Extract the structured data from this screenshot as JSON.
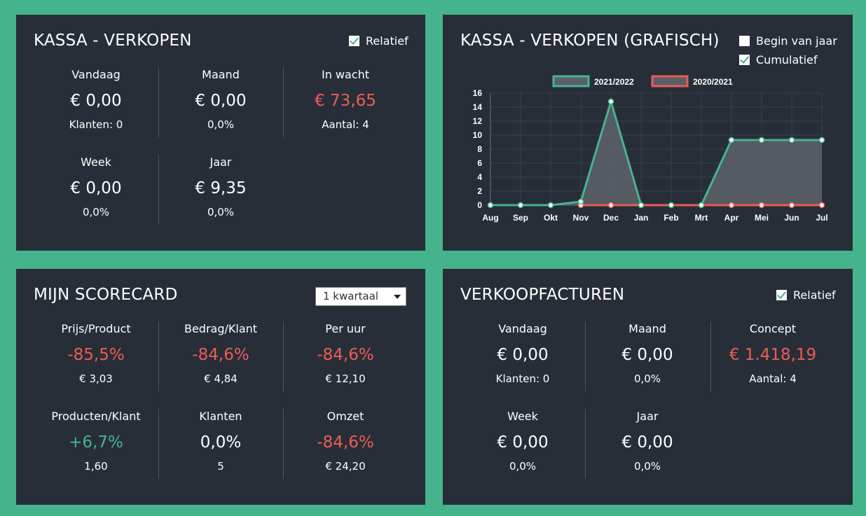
{
  "kassa": {
    "title": "KASSA - VERKOPEN",
    "relatief_label": "Relatief",
    "relatief_checked": true,
    "stats": [
      {
        "label": "Vandaag",
        "value": "€ 0,00",
        "sub": "Klanten: 0",
        "value_color": "white"
      },
      {
        "label": "Maand",
        "value": "€ 0,00",
        "sub": "0,0%",
        "value_color": "white"
      },
      {
        "label": "In wacht",
        "value": "€ 73,65",
        "sub": "Aantal: 4",
        "value_color": "red"
      },
      {
        "label": "Week",
        "value": "€ 0,00",
        "sub": "0,0%",
        "value_color": "white"
      },
      {
        "label": "Jaar",
        "value": "€ 9,35",
        "sub": "0,0%",
        "value_color": "white"
      }
    ]
  },
  "grafisch": {
    "title": "KASSA - VERKOPEN (GRAFISCH)",
    "begin_label": "Begin van jaar",
    "begin_checked": false,
    "cumulatief_label": "Cumulatief",
    "cumulatief_checked": true
  },
  "chart_data": {
    "type": "area",
    "categories": [
      "Aug",
      "Sep",
      "Okt",
      "Nov",
      "Dec",
      "Jan",
      "Feb",
      "Mrt",
      "Apr",
      "Mei",
      "Jun",
      "Jul"
    ],
    "series": [
      {
        "name": "2021/2022",
        "color": "#45b48d",
        "fill": "#5a5f68",
        "values": [
          0,
          0,
          0,
          0.5,
          14.8,
          0,
          0,
          0,
          9.3,
          9.3,
          9.3,
          9.3
        ]
      },
      {
        "name": "2020/2021",
        "color": "#ec5d55",
        "fill": "#5a5f68",
        "values": [
          null,
          null,
          null,
          0,
          0,
          0,
          0,
          0,
          0,
          0,
          0,
          0
        ]
      }
    ],
    "yticks": [
      0,
      2,
      4,
      6,
      8,
      10,
      12,
      14,
      16
    ],
    "ylim": [
      0,
      16
    ],
    "grid": true,
    "legend": "top"
  },
  "scorecard": {
    "title": "MIJN SCORECARD",
    "period_selected": "1 kwartaal",
    "stats": [
      {
        "label": "Prijs/Product",
        "value": "-85,5%",
        "sub": "€ 3,03",
        "value_color": "red"
      },
      {
        "label": "Bedrag/Klant",
        "value": "-84,6%",
        "sub": "€ 4,84",
        "value_color": "red"
      },
      {
        "label": "Per uur",
        "value": "-84,6%",
        "sub": "€ 12,10",
        "value_color": "red"
      },
      {
        "label": "Producten/Klant",
        "value": "+6,7%",
        "sub": "1,60",
        "value_color": "green"
      },
      {
        "label": "Klanten",
        "value": "0,0%",
        "sub": "5",
        "value_color": "white"
      },
      {
        "label": "Omzet",
        "value": "-84,6%",
        "sub": "€ 24,20",
        "value_color": "red"
      }
    ]
  },
  "facturen": {
    "title": "VERKOOPFACTUREN",
    "relatief_label": "Relatief",
    "relatief_checked": true,
    "stats": [
      {
        "label": "Vandaag",
        "value": "€ 0,00",
        "sub": "Klanten: 0",
        "value_color": "white"
      },
      {
        "label": "Maand",
        "value": "€ 0,00",
        "sub": "0,0%",
        "value_color": "white"
      },
      {
        "label": "Concept",
        "value": "€ 1.418,19",
        "sub": "Aantal: 4",
        "value_color": "red"
      },
      {
        "label": "Week",
        "value": "€ 0,00",
        "sub": "0,0%",
        "value_color": "white"
      },
      {
        "label": "Jaar",
        "value": "€ 0,00",
        "sub": "0,0%",
        "value_color": "white"
      }
    ]
  }
}
